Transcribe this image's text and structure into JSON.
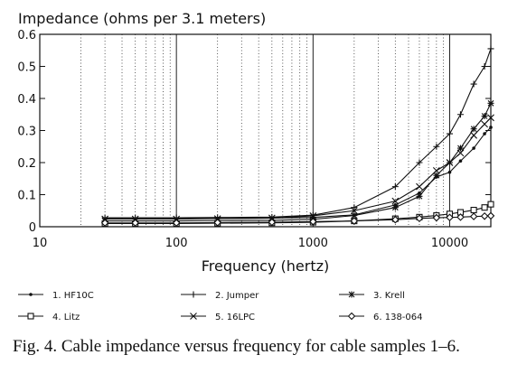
{
  "chart_data": {
    "type": "line",
    "title": "Impedance (ohms per 3.1 meters)",
    "xlabel": "Frequency (hertz)",
    "ylabel": "",
    "xscale": "log",
    "xlim": [
      10,
      20000
    ],
    "ylim": [
      0,
      0.6
    ],
    "xticks": [
      10,
      100,
      1000,
      10000
    ],
    "xtick_labels": [
      "10",
      "100",
      "1000",
      "10000"
    ],
    "yticks": [
      0,
      0.1,
      0.2,
      0.3,
      0.4,
      0.5,
      0.6
    ],
    "ytick_labels": [
      "0",
      "0.1",
      "0.2",
      "0.3",
      "0.4",
      "0.5",
      "0.6"
    ],
    "grid": "vertical log grid",
    "legend_position": "bottom",
    "x": [
      30,
      50,
      100,
      200,
      500,
      1000,
      2000,
      4000,
      6000,
      8000,
      10000,
      12000,
      15000,
      18000,
      20000
    ],
    "series": [
      {
        "name": "1. HF10C",
        "marker": "dot",
        "values": [
          0.025,
          0.025,
          0.025,
          0.026,
          0.027,
          0.029,
          0.037,
          0.068,
          0.105,
          0.155,
          0.17,
          0.205,
          0.245,
          0.29,
          0.31
        ]
      },
      {
        "name": "2. Jumper",
        "marker": "plus",
        "values": [
          0.028,
          0.028,
          0.028,
          0.029,
          0.03,
          0.036,
          0.06,
          0.125,
          0.2,
          0.25,
          0.29,
          0.35,
          0.445,
          0.5,
          0.555
        ]
      },
      {
        "name": "3. Krell",
        "marker": "asterisk",
        "values": [
          0.018,
          0.018,
          0.018,
          0.019,
          0.02,
          0.023,
          0.035,
          0.06,
          0.095,
          0.16,
          0.2,
          0.245,
          0.305,
          0.345,
          0.385
        ]
      },
      {
        "name": "4. Litz",
        "marker": "square",
        "values": [
          0.01,
          0.01,
          0.01,
          0.011,
          0.012,
          0.014,
          0.018,
          0.025,
          0.03,
          0.035,
          0.04,
          0.045,
          0.052,
          0.06,
          0.07
        ]
      },
      {
        "name": "5. 16LPC",
        "marker": "x",
        "values": [
          0.024,
          0.024,
          0.024,
          0.025,
          0.027,
          0.034,
          0.05,
          0.08,
          0.125,
          0.175,
          0.2,
          0.23,
          0.285,
          0.32,
          0.34
        ]
      },
      {
        "name": "6. 138-064",
        "marker": "diamond",
        "values": [
          0.012,
          0.012,
          0.012,
          0.013,
          0.014,
          0.016,
          0.018,
          0.022,
          0.026,
          0.028,
          0.029,
          0.03,
          0.032,
          0.033,
          0.034
        ]
      }
    ]
  },
  "caption": "Fig. 4. Cable impedance versus frequency for cable samples 1–6."
}
